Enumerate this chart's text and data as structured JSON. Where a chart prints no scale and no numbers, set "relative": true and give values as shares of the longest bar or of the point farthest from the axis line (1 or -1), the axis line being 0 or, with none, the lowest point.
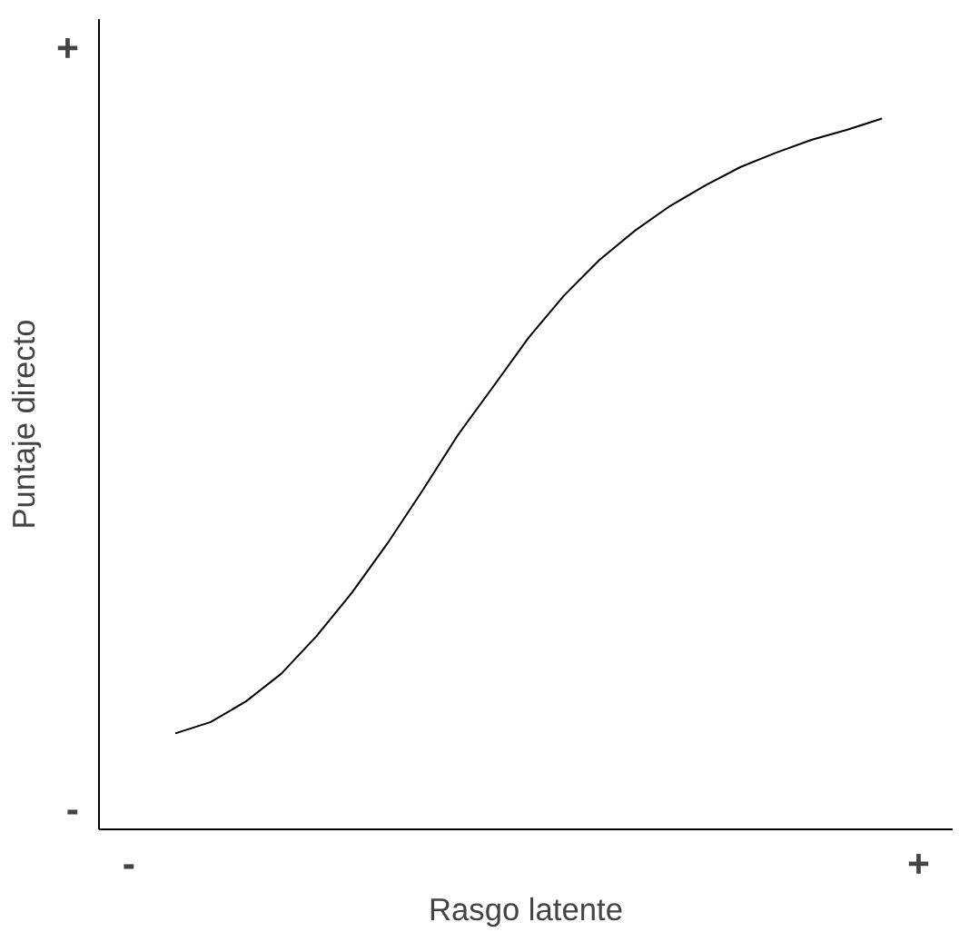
{
  "chart_data": {
    "type": "line",
    "xlabel": "Rasgo latente",
    "ylabel": "Puntaje directo",
    "relative": true,
    "categories": [
      null,
      null,
      null,
      null,
      null,
      null,
      null,
      null,
      null,
      null,
      null,
      null,
      null,
      null,
      null,
      null,
      null,
      null,
      null,
      null,
      null
    ],
    "series": [
      {
        "color": "#000000",
        "values": [
          0.135,
          0.151,
          0.18,
          0.219,
          0.272,
          0.333,
          0.402,
          0.477,
          0.555,
          0.623,
          0.692,
          0.751,
          0.801,
          0.842,
          0.877,
          0.906,
          0.932,
          0.952,
          0.97,
          0.984,
          1
        ]
      }
    ],
    "annotations": [
      "+",
      "-",
      "-",
      "+"
    ],
    "grid": false,
    "line_style": "solid"
  }
}
